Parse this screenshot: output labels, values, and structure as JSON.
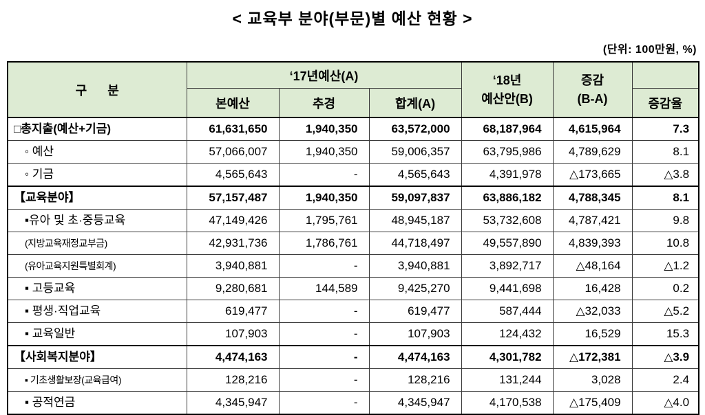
{
  "title": "<  교육부 분야(부문)별 예산 현황  >",
  "unit_note": "(단위:  100만원, %)",
  "colors": {
    "header_bg": "#ddebd3",
    "grid_line": "#3a3a3a",
    "frame_line": "#000000"
  },
  "table": {
    "header": {
      "category": "구      분",
      "y2017": "‘17년예산(A)",
      "sub": [
        "본예산",
        "추경",
        "합계(A)"
      ],
      "y2018": "‘18년\n예산안(B)",
      "change": "증감\n(B-A)",
      "change_rate_spacer": "",
      "change_rate": "증감율"
    },
    "rows": [
      {
        "label": "□총지출(예산+기금)",
        "indent": 0,
        "bold": true,
        "values": [
          "61,631,650",
          "1,940,350",
          "63,572,000",
          "68,187,964",
          "4,615,964",
          "7.3"
        ]
      },
      {
        "label": "◦ 예산",
        "indent": 1,
        "values": [
          "57,066,007",
          "1,940,350",
          "59,006,357",
          "63,795,986",
          "4,789,629",
          "8.1"
        ]
      },
      {
        "label": "◦ 기금",
        "indent": 1,
        "values": [
          "4,565,643",
          "-",
          "4,565,643",
          "4,391,978",
          "△173,665",
          "△3.8"
        ]
      },
      {
        "label": "【교육분야】",
        "indent": 0,
        "bold": true,
        "section": true,
        "values": [
          "57,157,487",
          "1,940,350",
          "59,097,837",
          "63,886,182",
          "4,788,345",
          "8.1"
        ]
      },
      {
        "label": "▪유아 및 초·중등교육",
        "indent": 1,
        "values": [
          "47,149,426",
          "1,795,761",
          "48,945,187",
          "53,732,608",
          "4,787,421",
          "9.8"
        ]
      },
      {
        "label": "(지방교육재정교부금)",
        "indent": 1,
        "compact": true,
        "values": [
          "42,931,736",
          "1,786,761",
          "44,718,497",
          "49,557,890",
          "4,839,393",
          "10.8"
        ]
      },
      {
        "label": "(유아교육지원특별회계)",
        "indent": 1,
        "compact": true,
        "values": [
          "3,940,881",
          "-",
          "3,940,881",
          "3,892,717",
          "△48,164",
          "△1.2"
        ]
      },
      {
        "label": "▪ 고등교육",
        "indent": 1,
        "values": [
          "9,280,681",
          "144,589",
          "9,425,270",
          "9,441,698",
          "16,428",
          "0.2"
        ]
      },
      {
        "label": "▪ 평생·직업교육",
        "indent": 1,
        "values": [
          "619,477",
          "-",
          "619,477",
          "587,444",
          "△32,033",
          "△5.2"
        ]
      },
      {
        "label": "▪ 교육일반",
        "indent": 1,
        "values": [
          "107,903",
          "-",
          "107,903",
          "124,432",
          "16,529",
          "15.3"
        ]
      },
      {
        "label": "【사회복지분야】",
        "indent": 0,
        "bold": true,
        "section": true,
        "values": [
          "4,474,163",
          "-",
          "4,474,163",
          "4,301,782",
          "△172,381",
          "△3.9"
        ]
      },
      {
        "label": "▪ 기초생활보장(교육급여)",
        "indent": 1,
        "compact": true,
        "values": [
          "128,216",
          "-",
          "128,216",
          "131,244",
          "3,028",
          "2.4"
        ]
      },
      {
        "label": "▪ 공적연금",
        "indent": 1,
        "values": [
          "4,345,947",
          "-",
          "4,345,947",
          "4,170,538",
          "△175,409",
          "△4.0"
        ]
      }
    ]
  }
}
